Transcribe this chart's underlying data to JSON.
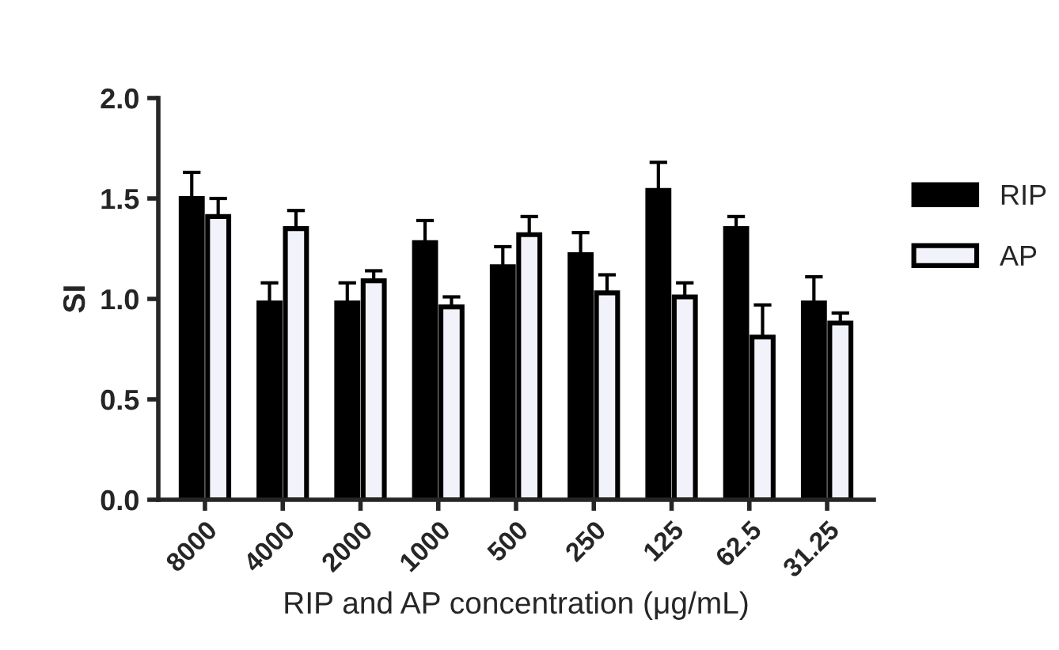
{
  "chart_data": {
    "type": "bar",
    "xlabel": "RIP and AP concentration (μg/mL)",
    "ylabel": "SI",
    "categories": [
      "8000",
      "4000",
      "2000",
      "1000",
      "500",
      "250",
      "125",
      "62.5",
      "31.25"
    ],
    "series": [
      {
        "name": "RIP",
        "color": "#000000",
        "values": [
          1.5,
          0.98,
          0.98,
          1.28,
          1.16,
          1.22,
          1.54,
          1.35,
          0.98
        ],
        "errors": [
          [
            1.5,
            1.63
          ],
          [
            0.98,
            1.08
          ],
          [
            0.98,
            1.08
          ],
          [
            1.28,
            1.39
          ],
          [
            1.16,
            1.26
          ],
          [
            1.22,
            1.33
          ],
          [
            1.54,
            1.68
          ],
          [
            1.35,
            1.41
          ],
          [
            0.98,
            1.11
          ]
        ]
      },
      {
        "name": "AP",
        "color": "#f2f2fa",
        "values": [
          1.41,
          1.35,
          1.09,
          0.96,
          1.32,
          1.03,
          1.01,
          0.81,
          0.88
        ],
        "errors": [
          [
            1.41,
            1.5
          ],
          [
            1.35,
            1.44
          ],
          [
            1.09,
            1.14
          ],
          [
            0.96,
            1.01
          ],
          [
            1.32,
            1.41
          ],
          [
            1.03,
            1.12
          ],
          [
            1.01,
            1.08
          ],
          [
            0.81,
            0.97
          ],
          [
            0.88,
            0.93
          ]
        ]
      }
    ],
    "ylim": [
      0,
      2.0
    ],
    "yticks": [
      {
        "value": 0,
        "label": "0.0"
      },
      {
        "value": 0.5,
        "label": "0.5"
      },
      {
        "value": 1.0,
        "label": "1.0"
      },
      {
        "value": 1.5,
        "label": "1.5"
      },
      {
        "value": 2.0,
        "label": "2.0"
      }
    ],
    "grid": false,
    "legend": "top right"
  }
}
